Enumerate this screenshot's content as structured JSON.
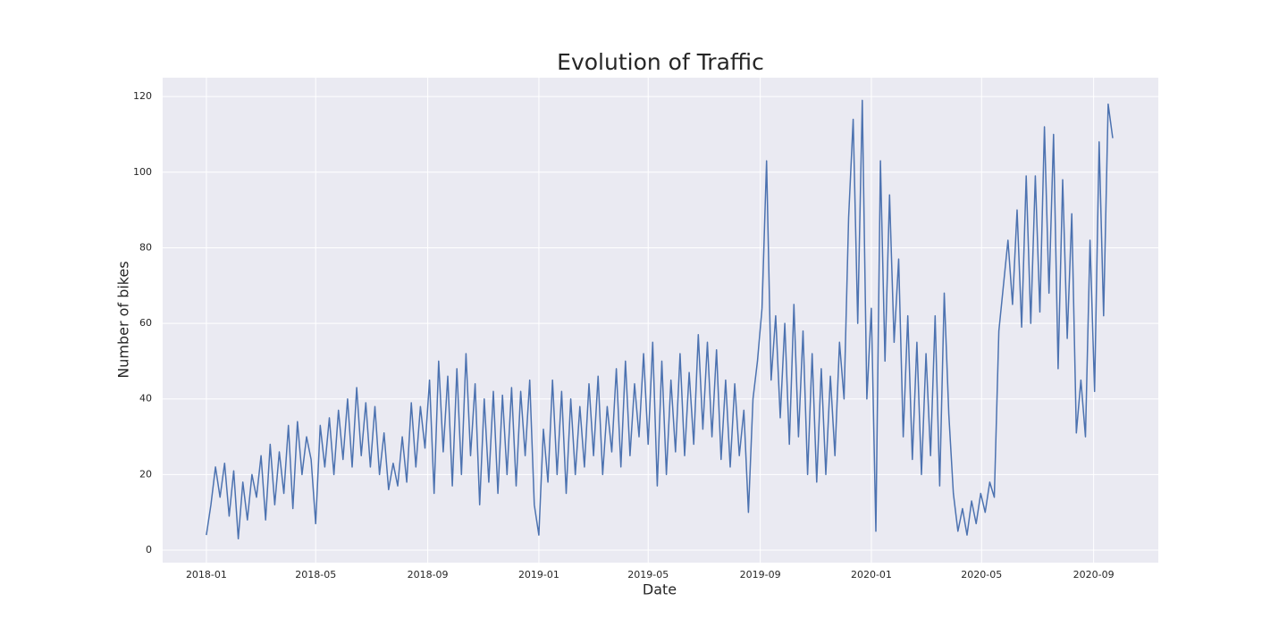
{
  "chart_data": {
    "type": "line",
    "title": "Evolution of Traffic",
    "x_label": "Date",
    "y_label": "Number of bikes",
    "color": "#4c72b0",
    "grid": true,
    "xlim": [
      -48,
      1045
    ],
    "ylim": [
      -3.3,
      125
    ],
    "xticks": [
      {
        "value": 0,
        "label": "2018-01"
      },
      {
        "value": 120,
        "label": "2018-05"
      },
      {
        "value": 243,
        "label": "2018-09"
      },
      {
        "value": 365,
        "label": "2019-01"
      },
      {
        "value": 485,
        "label": "2019-05"
      },
      {
        "value": 608,
        "label": "2019-09"
      },
      {
        "value": 730,
        "label": "2020-01"
      },
      {
        "value": 851,
        "label": "2020-05"
      },
      {
        "value": 974,
        "label": "2020-09"
      }
    ],
    "yticks": [
      0,
      20,
      40,
      60,
      80,
      100,
      120
    ],
    "x": [
      0,
      5,
      10,
      15,
      20,
      25,
      30,
      35,
      40,
      45,
      50,
      55,
      60,
      65,
      70,
      75,
      80,
      85,
      90,
      95,
      100,
      105,
      110,
      115,
      120,
      125,
      130,
      135,
      140,
      145,
      150,
      155,
      160,
      165,
      170,
      175,
      180,
      185,
      190,
      195,
      200,
      205,
      210,
      215,
      220,
      225,
      230,
      235,
      240,
      245,
      250,
      255,
      260,
      265,
      270,
      275,
      280,
      285,
      290,
      295,
      300,
      305,
      310,
      315,
      320,
      325,
      330,
      335,
      340,
      345,
      350,
      355,
      360,
      365,
      370,
      375,
      380,
      385,
      390,
      395,
      400,
      405,
      410,
      415,
      420,
      425,
      430,
      435,
      440,
      445,
      450,
      455,
      460,
      465,
      470,
      475,
      480,
      485,
      490,
      495,
      500,
      505,
      510,
      515,
      520,
      525,
      530,
      535,
      540,
      545,
      550,
      555,
      560,
      565,
      570,
      575,
      580,
      585,
      590,
      595,
      600,
      605,
      610,
      615,
      620,
      625,
      630,
      635,
      640,
      645,
      650,
      655,
      660,
      665,
      670,
      675,
      680,
      685,
      690,
      695,
      700,
      705,
      710,
      715,
      720,
      725,
      730,
      735,
      740,
      745,
      750,
      755,
      760,
      765,
      770,
      775,
      780,
      785,
      790,
      795,
      800,
      805,
      810,
      815,
      820,
      825,
      830,
      835,
      840,
      845,
      850,
      855,
      860,
      865,
      870,
      875,
      880,
      885,
      890,
      895,
      900,
      905,
      910,
      915,
      920,
      925,
      930,
      935,
      940,
      945,
      950,
      955,
      960,
      965,
      970,
      975,
      980,
      985,
      990,
      995
    ],
    "values": [
      4,
      12,
      22,
      14,
      23,
      9,
      21,
      3,
      18,
      8,
      20,
      14,
      25,
      8,
      28,
      12,
      26,
      15,
      33,
      11,
      34,
      20,
      30,
      24,
      7,
      33,
      22,
      35,
      20,
      37,
      24,
      40,
      22,
      43,
      25,
      39,
      22,
      38,
      20,
      31,
      16,
      23,
      17,
      30,
      18,
      39,
      22,
      38,
      27,
      45,
      15,
      50,
      26,
      46,
      17,
      48,
      20,
      52,
      25,
      44,
      12,
      40,
      18,
      42,
      15,
      41,
      20,
      43,
      17,
      42,
      25,
      45,
      12,
      4,
      32,
      18,
      45,
      20,
      42,
      15,
      40,
      20,
      38,
      22,
      44,
      25,
      46,
      20,
      38,
      26,
      48,
      22,
      50,
      25,
      44,
      30,
      52,
      28,
      55,
      17,
      50,
      20,
      45,
      26,
      52,
      25,
      47,
      28,
      57,
      32,
      55,
      30,
      53,
      24,
      45,
      22,
      44,
      25,
      37,
      10,
      40,
      50,
      64,
      103,
      45,
      62,
      35,
      60,
      28,
      65,
      30,
      58,
      20,
      52,
      18,
      48,
      20,
      46,
      25,
      55,
      40,
      88,
      114,
      60,
      119,
      40,
      64,
      5,
      103,
      50,
      94,
      55,
      77,
      30,
      62,
      24,
      55,
      20,
      52,
      25,
      62,
      17,
      68,
      36,
      15,
      5,
      11,
      4,
      13,
      7,
      15,
      10,
      18,
      14,
      58,
      70,
      82,
      65,
      90,
      59,
      99,
      60,
      99,
      63,
      112,
      68,
      110,
      48,
      98,
      56,
      89,
      31,
      45,
      30,
      82,
      42,
      108,
      62,
      118,
      109
    ]
  }
}
